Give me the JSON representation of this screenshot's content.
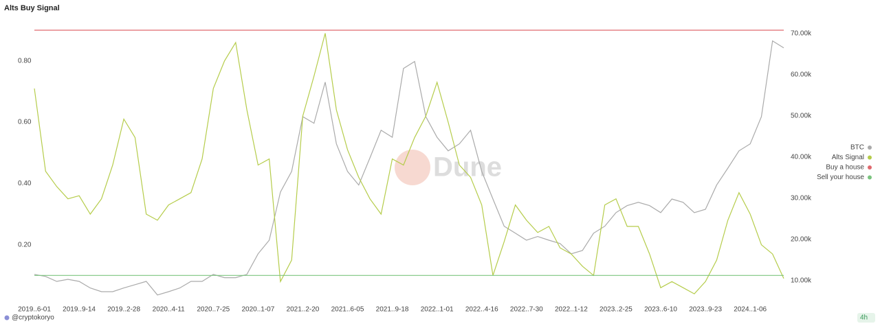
{
  "chart_data": {
    "type": "line",
    "title": "Alts Buy Signal",
    "watermark": "Dune",
    "footer": "@cryptokoryo",
    "interval": "4h",
    "categories": [
      "2019..6-01",
      null,
      null,
      null,
      "2019..9-14",
      null,
      null,
      null,
      "2019..2-28",
      null,
      null,
      null,
      "2020..4-11",
      null,
      null,
      null,
      "2020..7-25",
      null,
      null,
      null,
      "2020..1-07",
      null,
      null,
      null,
      "2021..2-20",
      null,
      null,
      null,
      "2021..6-05",
      null,
      null,
      null,
      "2021..9-18",
      null,
      null,
      null,
      "2022..1-01",
      null,
      null,
      null,
      "2022..4-16",
      null,
      null,
      null,
      "2022..7-30",
      null,
      null,
      null,
      "2022..1-12",
      null,
      null,
      null,
      "2023..2-25",
      null,
      null,
      null,
      "2023..6-10",
      null,
      null,
      null,
      "2023..9-23",
      null,
      null,
      null,
      "2024..1-06",
      null,
      null,
      null
    ],
    "ylim": [
      0,
      0.9
    ],
    "yticks": [
      {
        "value": 0.2,
        "label": "0.20"
      },
      {
        "value": 0.4,
        "label": "0.40"
      },
      {
        "value": 0.6,
        "label": "0.60"
      },
      {
        "value": 0.8,
        "label": "0.80"
      }
    ],
    "y2lim": [
      3800,
      70800
    ],
    "y2ticks": [
      {
        "value": 10000,
        "label": "10.00k"
      },
      {
        "value": 20000,
        "label": "20.00k"
      },
      {
        "value": 30000,
        "label": "30.00k"
      },
      {
        "value": 40000,
        "label": "40.00k"
      },
      {
        "value": 50000,
        "label": "50.00k"
      },
      {
        "value": 60000,
        "label": "60.00k"
      },
      {
        "value": 70000,
        "label": "70.00k"
      }
    ],
    "legend": "right",
    "series": [
      {
        "name": "BTC",
        "color": "#aaaaaa",
        "axis": "y2",
        "values": [
          11500,
          11000,
          9800,
          10300,
          9800,
          8200,
          7300,
          7300,
          8200,
          9000,
          9800,
          6500,
          7300,
          8200,
          9800,
          9800,
          11500,
          10700,
          10700,
          11500,
          16500,
          19800,
          31500,
          36500,
          49800,
          48200,
          58200,
          43200,
          36500,
          33200,
          39800,
          46500,
          44800,
          61500,
          63200,
          49800,
          44800,
          41500,
          43200,
          46500,
          36500,
          29800,
          23200,
          21500,
          19800,
          20700,
          19800,
          19000,
          16500,
          17300,
          21500,
          23200,
          26500,
          28200,
          29000,
          28200,
          26500,
          29800,
          29000,
          26500,
          27300,
          33200,
          37300,
          41500,
          43200,
          49800,
          68200,
          66500
        ]
      },
      {
        "name": "Alts Signal",
        "color": "#b5cc4a",
        "values": [
          0.71,
          0.44,
          0.39,
          0.35,
          0.36,
          0.3,
          0.35,
          0.46,
          0.61,
          0.55,
          0.3,
          0.28,
          0.33,
          0.35,
          0.37,
          0.48,
          0.71,
          0.8,
          0.86,
          0.64,
          0.46,
          0.48,
          0.08,
          0.15,
          0.62,
          0.75,
          0.89,
          0.64,
          0.51,
          0.42,
          0.35,
          0.3,
          0.48,
          0.46,
          0.55,
          0.62,
          0.73,
          0.6,
          0.46,
          0.42,
          0.33,
          0.1,
          0.21,
          0.33,
          0.28,
          0.24,
          0.26,
          0.19,
          0.17,
          0.13,
          0.1,
          0.33,
          0.35,
          0.26,
          0.26,
          0.17,
          0.06,
          0.08,
          0.06,
          0.04,
          0.08,
          0.15,
          0.28,
          0.37,
          0.3,
          0.2,
          0.17,
          0.09
        ]
      },
      {
        "name": "Buy a house",
        "color": "#e0696e",
        "values": [
          0.9,
          0.9,
          0.9,
          0.9,
          0.9,
          0.9,
          0.9,
          0.9,
          0.9,
          0.9,
          0.9,
          0.9,
          0.9,
          0.9,
          0.9,
          0.9,
          0.9,
          0.9,
          0.9,
          0.9,
          0.9,
          0.9,
          0.9,
          0.9,
          0.9,
          0.9,
          0.9,
          0.9,
          0.9,
          0.9,
          0.9,
          0.9,
          0.9,
          0.9,
          0.9,
          0.9,
          0.9,
          0.9,
          0.9,
          0.9,
          0.9,
          0.9,
          0.9,
          0.9,
          0.9,
          0.9,
          0.9,
          0.9,
          0.9,
          0.9,
          0.9,
          0.9,
          0.9,
          0.9,
          0.9,
          0.9,
          0.9,
          0.9,
          0.9,
          0.9,
          0.9,
          0.9,
          0.9,
          0.9,
          0.9,
          0.9,
          0.9,
          0.9
        ]
      },
      {
        "name": "Sell your house",
        "color": "#7bc47f",
        "values": [
          0.1,
          0.1,
          0.1,
          0.1,
          0.1,
          0.1,
          0.1,
          0.1,
          0.1,
          0.1,
          0.1,
          0.1,
          0.1,
          0.1,
          0.1,
          0.1,
          0.1,
          0.1,
          0.1,
          0.1,
          0.1,
          0.1,
          0.1,
          0.1,
          0.1,
          0.1,
          0.1,
          0.1,
          0.1,
          0.1,
          0.1,
          0.1,
          0.1,
          0.1,
          0.1,
          0.1,
          0.1,
          0.1,
          0.1,
          0.1,
          0.1,
          0.1,
          0.1,
          0.1,
          0.1,
          0.1,
          0.1,
          0.1,
          0.1,
          0.1,
          0.1,
          0.1,
          0.1,
          0.1,
          0.1,
          0.1,
          0.1,
          0.1,
          0.1,
          0.1,
          0.1,
          0.1,
          0.1,
          0.1,
          0.1,
          0.1,
          0.1,
          0.1
        ]
      }
    ]
  }
}
